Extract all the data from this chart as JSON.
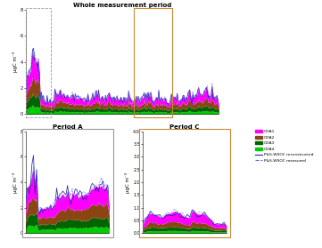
{
  "title_whole": "Whole measurement period",
  "title_A": "Period A",
  "title_C": "Period C",
  "ylabel": "μgC m⁻³",
  "colors": {
    "OOA1": "#FF00FF",
    "OOA2": "#8B4513",
    "OOA3": "#006400",
    "OOA4": "#00CC00",
    "line1": "#2222AA",
    "line2": "#6666DD"
  },
  "legend_labels": [
    "OOA1",
    "OOA2",
    "OOA3",
    "OOA4",
    "P&S-WSOC reconstructed",
    "P&S-WSOC measured"
  ],
  "ylim_whole": [
    0,
    8
  ],
  "ylim_A": [
    0,
    8
  ],
  "ylim_C": [
    0,
    4
  ],
  "whole_yticks": [
    0,
    2,
    4,
    6,
    8
  ],
  "A_yticks": [
    0,
    2,
    4,
    6,
    8
  ],
  "C_yticks": [
    0,
    0.5,
    1.0,
    1.5,
    2.0,
    2.5,
    3.0,
    3.5,
    4.0
  ],
  "box_A_color": "#999999",
  "box_C_color": "#CC8833",
  "fig_bg": "#FFFFFF"
}
